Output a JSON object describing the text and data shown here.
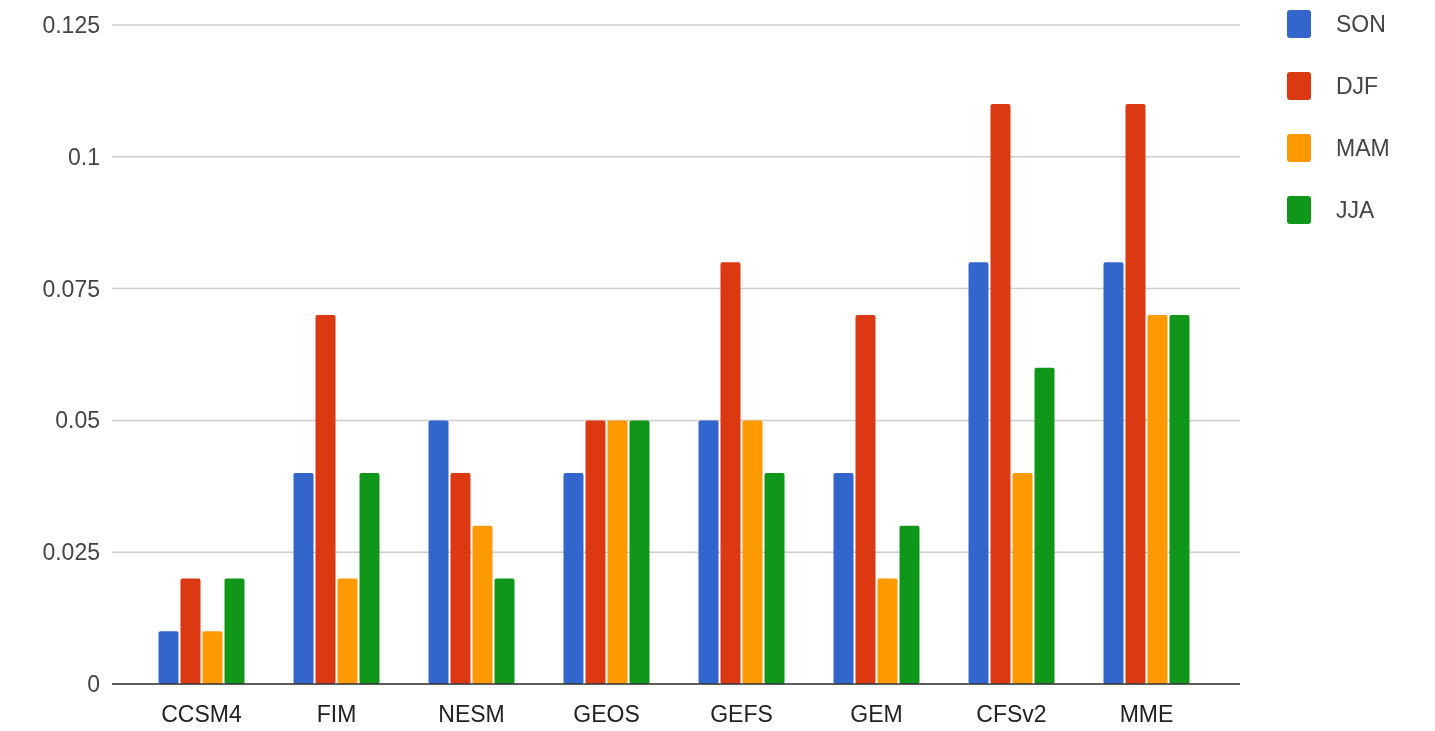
{
  "chart_data": {
    "type": "bar",
    "categories": [
      "CCSM4",
      "FIM",
      "NESM",
      "GEOS",
      "GEFS",
      "GEM",
      "CFSv2",
      "MME"
    ],
    "series": [
      {
        "name": "SON",
        "color": "#3366cc",
        "values": [
          0.01,
          0.04,
          0.05,
          0.04,
          0.05,
          0.04,
          0.08,
          0.08
        ]
      },
      {
        "name": "DJF",
        "color": "#dc3912",
        "values": [
          0.02,
          0.07,
          0.04,
          0.05,
          0.08,
          0.07,
          0.11,
          0.11
        ]
      },
      {
        "name": "MAM",
        "color": "#ff9900",
        "values": [
          0.01,
          0.02,
          0.03,
          0.05,
          0.05,
          0.02,
          0.04,
          0.07
        ]
      },
      {
        "name": "JJA",
        "color": "#109618",
        "values": [
          0.02,
          0.04,
          0.02,
          0.05,
          0.04,
          0.03,
          0.06,
          0.07
        ]
      }
    ],
    "ylim": [
      0,
      0.125
    ],
    "yticks": [
      0,
      0.025,
      0.05,
      0.075,
      0.1,
      0.125
    ],
    "grid": "y",
    "legend": "right"
  }
}
